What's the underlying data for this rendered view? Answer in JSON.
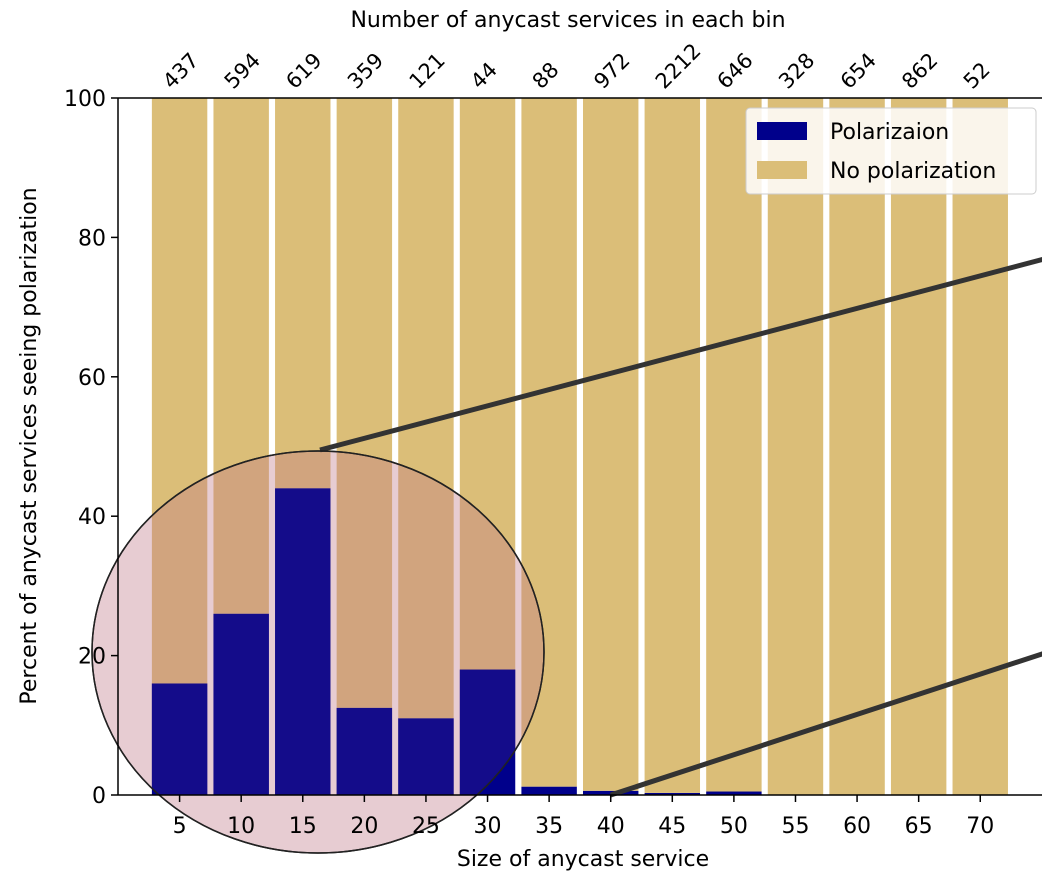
{
  "chart_data": {
    "type": "bar",
    "stacked": true,
    "categories": [
      5,
      10,
      15,
      20,
      25,
      30,
      35,
      40,
      45,
      50,
      55,
      60,
      65,
      70
    ],
    "series": [
      {
        "name": "Polarizaion",
        "color": "#00008b",
        "values": [
          16,
          26,
          44,
          12.5,
          11,
          18,
          1.2,
          0.6,
          0.3,
          0.5,
          0,
          0,
          0,
          0
        ]
      },
      {
        "name": "No polarization",
        "color": "#dbbe78",
        "values": [
          84,
          74,
          56,
          87.5,
          89,
          82,
          98.8,
          99.4,
          99.7,
          99.5,
          100,
          100,
          100,
          100
        ]
      }
    ],
    "bin_counts": [
      "437",
      "594",
      "619",
      "359",
      "121",
      "44",
      "88",
      "972",
      "2212",
      "646",
      "328",
      "654",
      "862",
      "52"
    ],
    "title": "",
    "top_axis_label": "Number of anycast services in each bin",
    "xlabel": "Size of anycast service",
    "ylabel": "Percent of anycast services seeing polarization",
    "xticks": [
      "5",
      "10",
      "15",
      "20",
      "25",
      "30",
      "35",
      "40",
      "45",
      "50",
      "55",
      "60",
      "65",
      "70"
    ],
    "yticks": [
      "0",
      "20",
      "40",
      "60",
      "80",
      "100"
    ],
    "ylim": [
      0,
      100
    ],
    "xlim": [
      0,
      75.5
    ],
    "legend_position": "top-right",
    "grid": false,
    "zoom_inset": {
      "description_shape": "circle magnifier",
      "fill": "#c07a8a",
      "covers_categories": [
        5,
        10,
        15,
        20,
        25,
        30
      ],
      "magnified_to_axis": "0-40 -> 0-100",
      "source_range_x": [
        40,
        77
      ]
    }
  }
}
